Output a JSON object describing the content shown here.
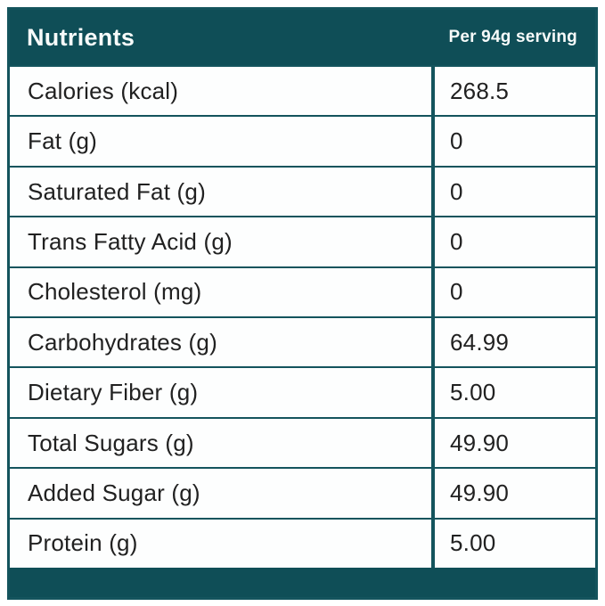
{
  "table": {
    "header": {
      "nutrients_label": "Nutrients",
      "serving_label": "Per 94g serving"
    },
    "rows": [
      {
        "label": "Calories (kcal)",
        "value": "268.5"
      },
      {
        "label": "Fat (g)",
        "value": "0"
      },
      {
        "label": "Saturated Fat (g)",
        "value": "0"
      },
      {
        "label": "Trans Fatty Acid (g)",
        "value": "0"
      },
      {
        "label": "Cholesterol (mg)",
        "value": "0"
      },
      {
        "label": "Carbohydrates (g)",
        "value": "64.99"
      },
      {
        "label": "Dietary Fiber (g)",
        "value": "5.00"
      },
      {
        "label": "Total Sugars (g)",
        "value": "49.90"
      },
      {
        "label": "Added Sugar (g)",
        "value": "49.90"
      },
      {
        "label": "Protein (g)",
        "value": "5.00"
      }
    ],
    "colors": {
      "teal": "#0f4e57",
      "border_teal": "#14545d",
      "row_background": "#fdfefe",
      "text": "#212121",
      "header_text": "#f7fbfa"
    }
  },
  "chart_data": {
    "type": "table",
    "title": "Nutrients",
    "subtitle": "Per 94g serving",
    "columns": [
      "Nutrients",
      "Per 94g serving"
    ],
    "categories": [
      "Calories (kcal)",
      "Fat (g)",
      "Saturated Fat (g)",
      "Trans Fatty Acid (g)",
      "Cholesterol (mg)",
      "Carbohydrates (g)",
      "Dietary Fiber (g)",
      "Total Sugars (g)",
      "Added Sugar (g)",
      "Protein (g)"
    ],
    "values": [
      268.5,
      0,
      0,
      0,
      0,
      64.99,
      5.0,
      49.9,
      49.9,
      5.0
    ]
  }
}
